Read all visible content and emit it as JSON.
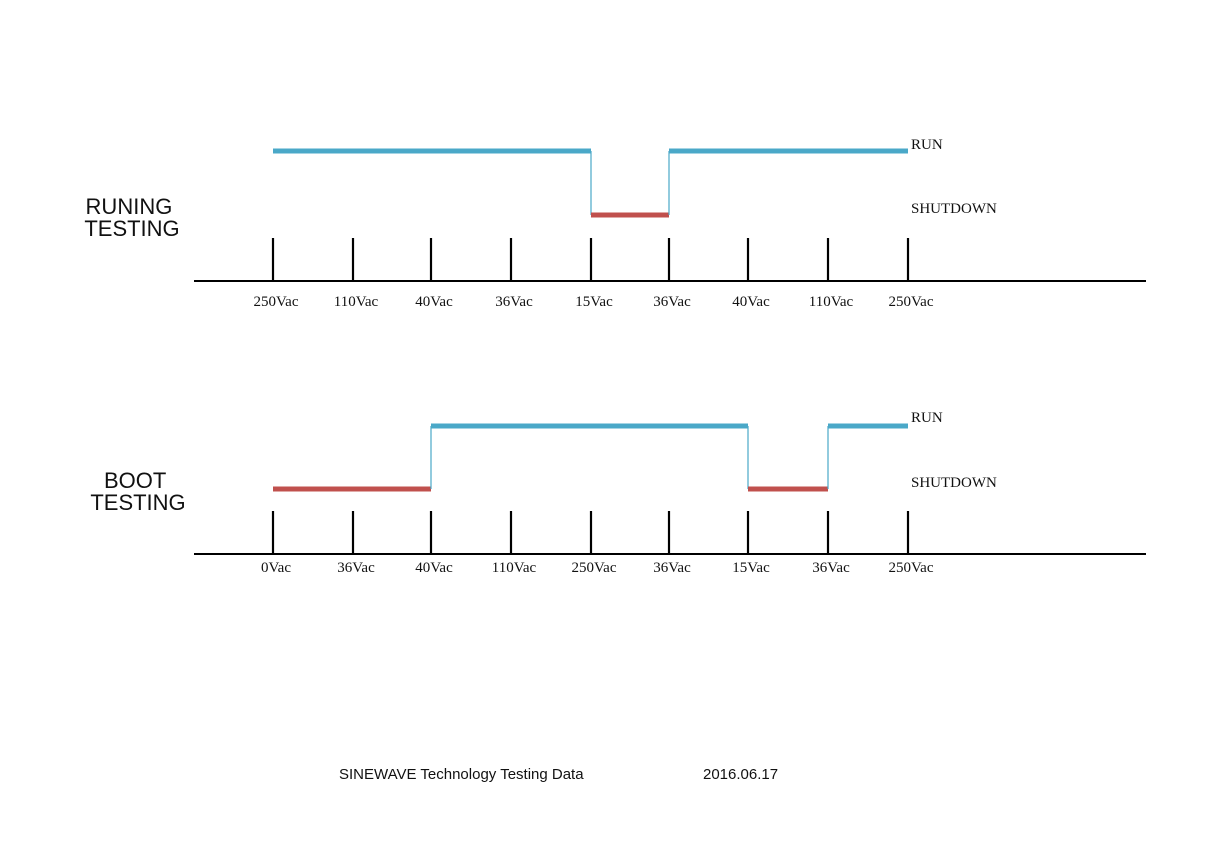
{
  "colors": {
    "run": "#4aa8c8",
    "shutdown": "#c0504d",
    "axis": "#000000"
  },
  "state_labels": {
    "run": "RUN",
    "shutdown": "SHUTDOWN"
  },
  "panels": [
    {
      "id": "runing-testing",
      "title_lines": [
        "RUNING",
        "TESTING"
      ],
      "ticks": [
        "250Vac",
        "110Vac",
        "40Vac",
        "36Vac",
        "15Vac",
        "36Vac",
        "40Vac",
        "110Vac",
        "250Vac"
      ],
      "segments": [
        {
          "state": "run",
          "from": 0,
          "to": 4
        },
        {
          "state": "shutdown",
          "from": 4,
          "to": 5
        },
        {
          "state": "run",
          "from": 5,
          "to": 8
        }
      ]
    },
    {
      "id": "boot-testing",
      "title_lines": [
        "BOOT",
        "TESTING"
      ],
      "ticks": [
        "0Vac",
        "36Vac",
        "40Vac",
        "110Vac",
        "250Vac",
        "36Vac",
        "15Vac",
        "36Vac",
        "250Vac"
      ],
      "segments": [
        {
          "state": "shutdown",
          "from": 0,
          "to": 2
        },
        {
          "state": "run",
          "from": 2,
          "to": 6
        },
        {
          "state": "shutdown",
          "from": 6,
          "to": 7
        },
        {
          "state": "run",
          "from": 7,
          "to": 8
        }
      ]
    }
  ],
  "footer": {
    "caption": "SINEWAVE Technology Testing Data",
    "date": "2016.06.17"
  }
}
